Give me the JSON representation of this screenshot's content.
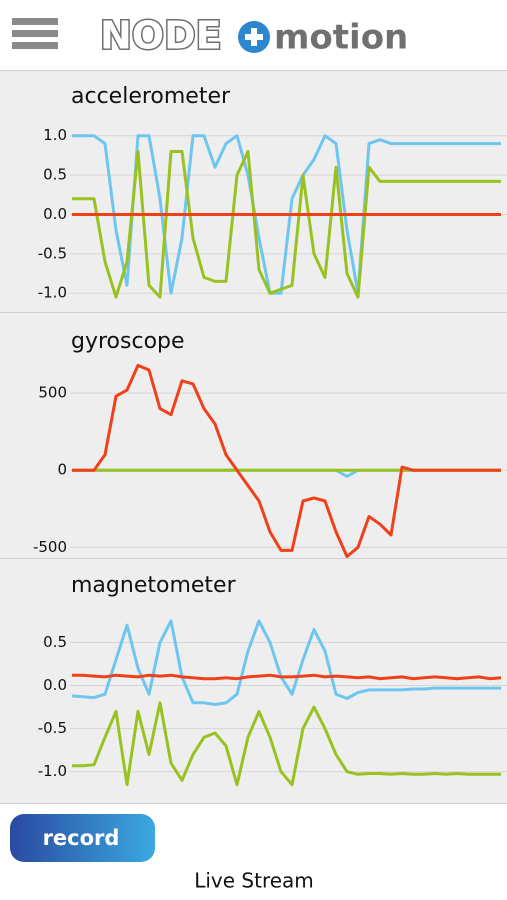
{
  "header": {
    "logo_left": "NODE",
    "logo_right": "motion"
  },
  "chart_data": [
    {
      "type": "line",
      "title": "accelerometer",
      "grid": true,
      "ylim": [
        -1.15,
        1.2
      ],
      "yticks": [
        {
          "value": 1,
          "label": "1.0"
        },
        {
          "value": 0.5,
          "label": "0.5"
        },
        {
          "value": 0,
          "label": "0.0"
        },
        {
          "value": -0.5,
          "label": "-0.5"
        },
        {
          "value": -1,
          "label": "-1.0"
        }
      ],
      "series": [
        {
          "color": "#6ec6f0",
          "values": [
            1,
            1,
            1,
            0.9,
            -0.2,
            -0.9,
            1,
            1,
            0.2,
            -1,
            -0.3,
            1,
            1,
            0.6,
            0.9,
            1,
            0.5,
            -0.3,
            -1,
            -1,
            0.2,
            0.5,
            0.7,
            1,
            0.9,
            -0.2,
            -1,
            0.9,
            0.95,
            0.9,
            0.9,
            0.9,
            0.9,
            0.9,
            0.9,
            0.9,
            0.9,
            0.9,
            0.9,
            0.9
          ]
        },
        {
          "color": "#99c221",
          "values": [
            0.2,
            0.2,
            0.2,
            -0.6,
            -1.05,
            -0.6,
            0.8,
            -0.9,
            -1.05,
            0.8,
            0.8,
            -0.3,
            -0.8,
            -0.85,
            -0.85,
            0.5,
            0.8,
            -0.7,
            -1,
            -0.95,
            -0.9,
            0.5,
            -0.5,
            -0.8,
            0.6,
            -0.75,
            -1.05,
            0.6,
            0.42,
            0.42,
            0.42,
            0.42,
            0.42,
            0.42,
            0.42,
            0.42,
            0.42,
            0.42,
            0.42,
            0.42
          ]
        },
        {
          "color": "#f0401a",
          "values": [
            0,
            0,
            0,
            0,
            0,
            0,
            0,
            0,
            0,
            0,
            0,
            0,
            0,
            0,
            0,
            0,
            0,
            0,
            0,
            0,
            0,
            0,
            0,
            0,
            0,
            0,
            0,
            0,
            0,
            0,
            0,
            0,
            0,
            0,
            0,
            0,
            0,
            0,
            0,
            0
          ]
        }
      ]
    },
    {
      "type": "line",
      "title": "gyroscope",
      "grid": true,
      "ylim": [
        -550,
        715
      ],
      "yticks": [
        500,
        0,
        -500
      ],
      "series": [
        {
          "color": "#6ec6f0",
          "values": [
            0,
            0,
            0,
            0,
            0,
            0,
            0,
            0,
            0,
            0,
            0,
            0,
            0,
            0,
            0,
            0,
            0,
            0,
            0,
            0,
            0,
            0,
            0,
            0,
            0,
            -40,
            0,
            0,
            0,
            0,
            0,
            0,
            0,
            0,
            0,
            0,
            0,
            0,
            0,
            0
          ]
        },
        {
          "color": "#99c221",
          "values": [
            0,
            0,
            0,
            0,
            0,
            0,
            0,
            0,
            0,
            0,
            0,
            0,
            0,
            0,
            0,
            0,
            0,
            0,
            0,
            0,
            0,
            0,
            0,
            0,
            0,
            0,
            0,
            0,
            0,
            0,
            0,
            0,
            0,
            0,
            0,
            0,
            0,
            0,
            0,
            0
          ]
        },
        {
          "color": "#f0401a",
          "values": [
            0,
            0,
            0,
            100,
            480,
            520,
            680,
            650,
            400,
            360,
            580,
            560,
            400,
            300,
            100,
            0,
            -100,
            -200,
            -400,
            -520,
            -520,
            -200,
            -180,
            -200,
            -400,
            -560,
            -500,
            -300,
            -350,
            -420,
            20,
            0,
            0,
            0,
            0,
            0,
            0,
            0,
            0,
            0
          ]
        }
      ]
    },
    {
      "type": "line",
      "title": "magnetometer",
      "grid": true,
      "ylim": [
        -1.27,
        0.9
      ],
      "yticks": [
        {
          "value": 0.5,
          "label": "0.5"
        },
        {
          "value": 0,
          "label": "0.0"
        },
        {
          "value": -0.5,
          "label": "-0.5"
        },
        {
          "value": -1,
          "label": "-1.0"
        }
      ],
      "series": [
        {
          "color": "#6ec6f0",
          "values": [
            -0.12,
            -0.13,
            -0.14,
            -0.1,
            0.3,
            0.7,
            0.2,
            -0.1,
            0.5,
            0.75,
            0.1,
            -0.2,
            -0.2,
            -0.22,
            -0.2,
            -0.1,
            0.4,
            0.75,
            0.5,
            0.1,
            -0.1,
            0.3,
            0.65,
            0.4,
            -0.1,
            -0.15,
            -0.08,
            -0.05,
            -0.05,
            -0.05,
            -0.05,
            -0.04,
            -0.04,
            -0.03,
            -0.03,
            -0.03,
            -0.03,
            -0.03,
            -0.03,
            -0.03
          ]
        },
        {
          "color": "#99c221",
          "values": [
            -0.93,
            -0.93,
            -0.92,
            -0.6,
            -0.3,
            -1.15,
            -0.3,
            -0.8,
            -0.2,
            -0.9,
            -1.1,
            -0.8,
            -0.6,
            -0.55,
            -0.7,
            -1.15,
            -0.6,
            -0.3,
            -0.6,
            -1.0,
            -1.15,
            -0.5,
            -0.25,
            -0.5,
            -0.8,
            -1.0,
            -1.03,
            -1.02,
            -1.02,
            -1.03,
            -1.02,
            -1.03,
            -1.03,
            -1.02,
            -1.03,
            -1.02,
            -1.03,
            -1.03,
            -1.03,
            -1.03
          ]
        },
        {
          "color": "#f0401a",
          "values": [
            0.12,
            0.12,
            0.11,
            0.1,
            0.12,
            0.11,
            0.1,
            0.12,
            0.11,
            0.12,
            0.1,
            0.09,
            0.08,
            0.08,
            0.09,
            0.08,
            0.1,
            0.11,
            0.12,
            0.1,
            0.1,
            0.11,
            0.12,
            0.1,
            0.11,
            0.1,
            0.09,
            0.1,
            0.08,
            0.09,
            0.1,
            0.08,
            0.09,
            0.1,
            0.09,
            0.08,
            0.09,
            0.1,
            0.08,
            0.09
          ]
        }
      ]
    }
  ],
  "footer": {
    "button": "record",
    "status": "Live Stream"
  }
}
